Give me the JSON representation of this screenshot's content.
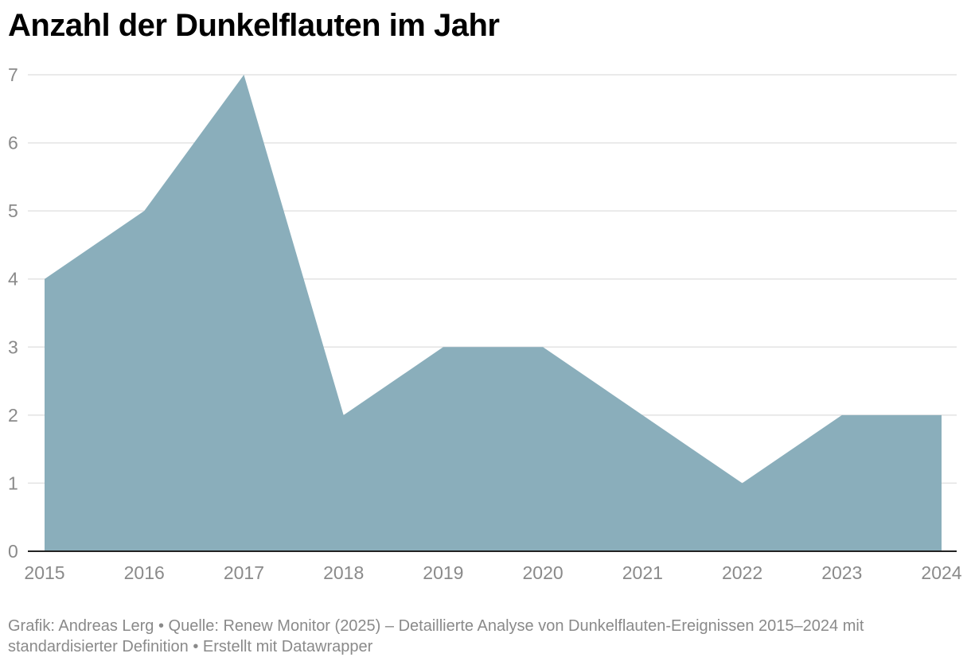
{
  "title": "Anzahl der Dunkelflauten im Jahr",
  "footer": {
    "byline": "Grafik: Andreas Lerg • Quelle: Renew Monitor (2025) – Detaillierte Analyse von Dunkelflauten-Ereignissen 2015–2024 mit standardisierter Definition  • Erstellt mit Datawrapper"
  },
  "colors": {
    "area": "#8aaebb",
    "grid": "#e3e3e3",
    "axis": "#222222",
    "label": "#8a8a8a"
  },
  "chart_data": {
    "type": "area",
    "title": "Anzahl der Dunkelflauten im Jahr",
    "x": [
      "2015",
      "2016",
      "2017",
      "2018",
      "2019",
      "2020",
      "2021",
      "2022",
      "2023",
      "2024"
    ],
    "values": [
      4,
      5,
      7,
      2,
      3,
      3,
      2,
      1,
      2,
      2
    ],
    "ylim": [
      0,
      7
    ],
    "yticks": [
      0,
      1,
      2,
      3,
      4,
      5,
      6,
      7
    ],
    "xlabel": "",
    "ylabel": "",
    "grid": true,
    "legend": "none"
  }
}
